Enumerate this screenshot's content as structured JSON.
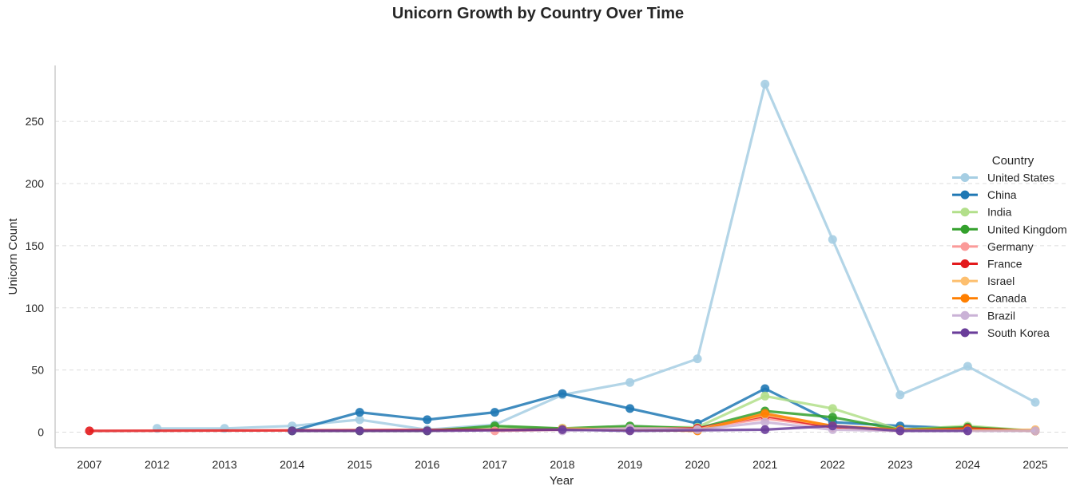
{
  "chart_data": {
    "type": "line",
    "title": "Unicorn Growth by Country Over Time",
    "xlabel": "Year",
    "ylabel": "Unicorn Count",
    "x": [
      "2007",
      "2012",
      "2013",
      "2014",
      "2015",
      "2016",
      "2017",
      "2018",
      "2019",
      "2020",
      "2021",
      "2022",
      "2023",
      "2024",
      "2025"
    ],
    "yticks": [
      0,
      50,
      100,
      150,
      200,
      250
    ],
    "ylim": [
      -12,
      293
    ],
    "grid": "horizontal dashed",
    "legend": {
      "title": "Country",
      "placement": "right"
    },
    "series": [
      {
        "name": "United States",
        "color": "#a6cee3",
        "values": [
          null,
          3,
          3,
          5,
          10,
          2,
          6,
          30,
          40,
          59,
          280,
          155,
          30,
          53,
          24
        ]
      },
      {
        "name": "China",
        "color": "#1f78b4",
        "values": [
          null,
          null,
          null,
          1,
          16,
          10,
          16,
          31,
          19,
          7,
          35,
          8,
          5,
          3,
          1
        ]
      },
      {
        "name": "India",
        "color": "#b2df8a",
        "values": [
          null,
          null,
          null,
          null,
          1,
          1,
          4,
          3,
          4,
          4,
          29,
          19,
          2,
          5,
          1
        ]
      },
      {
        "name": "United Kingdom",
        "color": "#33a02c",
        "values": [
          null,
          null,
          null,
          1,
          1,
          1,
          5,
          3,
          5,
          3,
          17,
          12,
          2,
          4,
          1
        ]
      },
      {
        "name": "Germany",
        "color": "#fb9a99",
        "values": [
          null,
          null,
          null,
          null,
          null,
          null,
          1,
          2,
          3,
          3,
          11,
          4,
          1,
          2,
          1
        ]
      },
      {
        "name": "France",
        "color": "#e31a1c",
        "values": [
          1,
          null,
          null,
          null,
          null,
          null,
          null,
          2,
          2,
          3,
          13,
          4,
          1,
          3,
          1
        ]
      },
      {
        "name": "Israel",
        "color": "#fdbf6f",
        "values": [
          null,
          null,
          null,
          null,
          null,
          null,
          null,
          3,
          2,
          2,
          14,
          5,
          1,
          1,
          2
        ]
      },
      {
        "name": "Canada",
        "color": "#ff7f00",
        "values": [
          null,
          null,
          null,
          null,
          null,
          null,
          null,
          2,
          2,
          1,
          15,
          5,
          2,
          2,
          1
        ]
      },
      {
        "name": "Brazil",
        "color": "#cab2d6",
        "values": [
          null,
          null,
          null,
          null,
          null,
          null,
          null,
          1,
          3,
          2,
          8,
          2,
          1,
          1,
          1
        ]
      },
      {
        "name": "South Korea",
        "color": "#6a3d9a",
        "values": [
          null,
          null,
          null,
          1,
          1,
          1,
          null,
          2,
          1,
          null,
          2,
          5,
          1,
          1,
          null
        ]
      }
    ]
  }
}
